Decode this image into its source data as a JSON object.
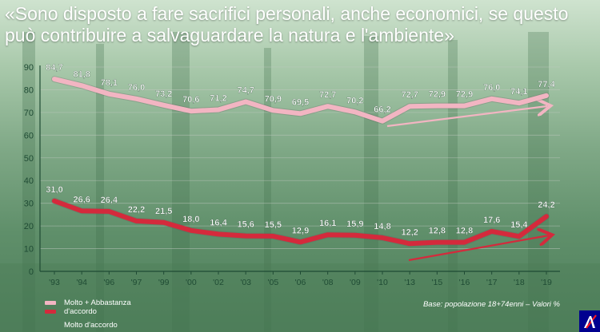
{
  "title": "«Sono disposto a fare sacrifici personali, anche economici, se questo può contribuire a salvaguardare la natura e l'ambiente»",
  "note": "Base: popolazione 18+74enni – Valori %",
  "logo": {
    "text": "AXA",
    "color": "#00008f"
  },
  "legend": {
    "items": [
      {
        "label": "Molto + Abbastanza",
        "color": "#f2b5c2"
      },
      {
        "label": "d'accordo",
        "color": "#d42a3c"
      },
      {
        "label": "Molto d'accordo",
        "color": ""
      }
    ]
  },
  "chart_data": {
    "type": "line",
    "categories": [
      "'93",
      "'94",
      "'96",
      "'97",
      "'99",
      "'00",
      "'02",
      "'03",
      "'05",
      "'06",
      "'08",
      "'09",
      "'10",
      "'13",
      "'15",
      "'16",
      "'17",
      "'18",
      "'19"
    ],
    "series": [
      {
        "values": [
          84.7,
          81.8,
          78.1,
          76.0,
          73.2,
          70.6,
          71.2,
          74.7,
          70.9,
          69.5,
          72.7,
          70.2,
          66.2,
          72.7,
          72.9,
          72.9,
          76.0,
          74.1,
          77.4
        ],
        "color": "#f2b5c2"
      },
      {
        "values": [
          31.0,
          26.6,
          26.4,
          22.2,
          21.5,
          18.0,
          16.4,
          15.6,
          15.5,
          12.9,
          16.1,
          15.9,
          14.8,
          12.2,
          12.8,
          12.8,
          17.6,
          15.4,
          24.2
        ],
        "color": "#d42a3c"
      }
    ],
    "yticks": [
      0,
      10,
      20,
      30,
      40,
      50,
      60,
      70,
      80,
      90
    ],
    "ylim": [
      0,
      90
    ],
    "xlabel": "",
    "ylabel": "",
    "grid": true,
    "axis_color": "#1f4b34",
    "grid_color": "#c0c8c0"
  }
}
